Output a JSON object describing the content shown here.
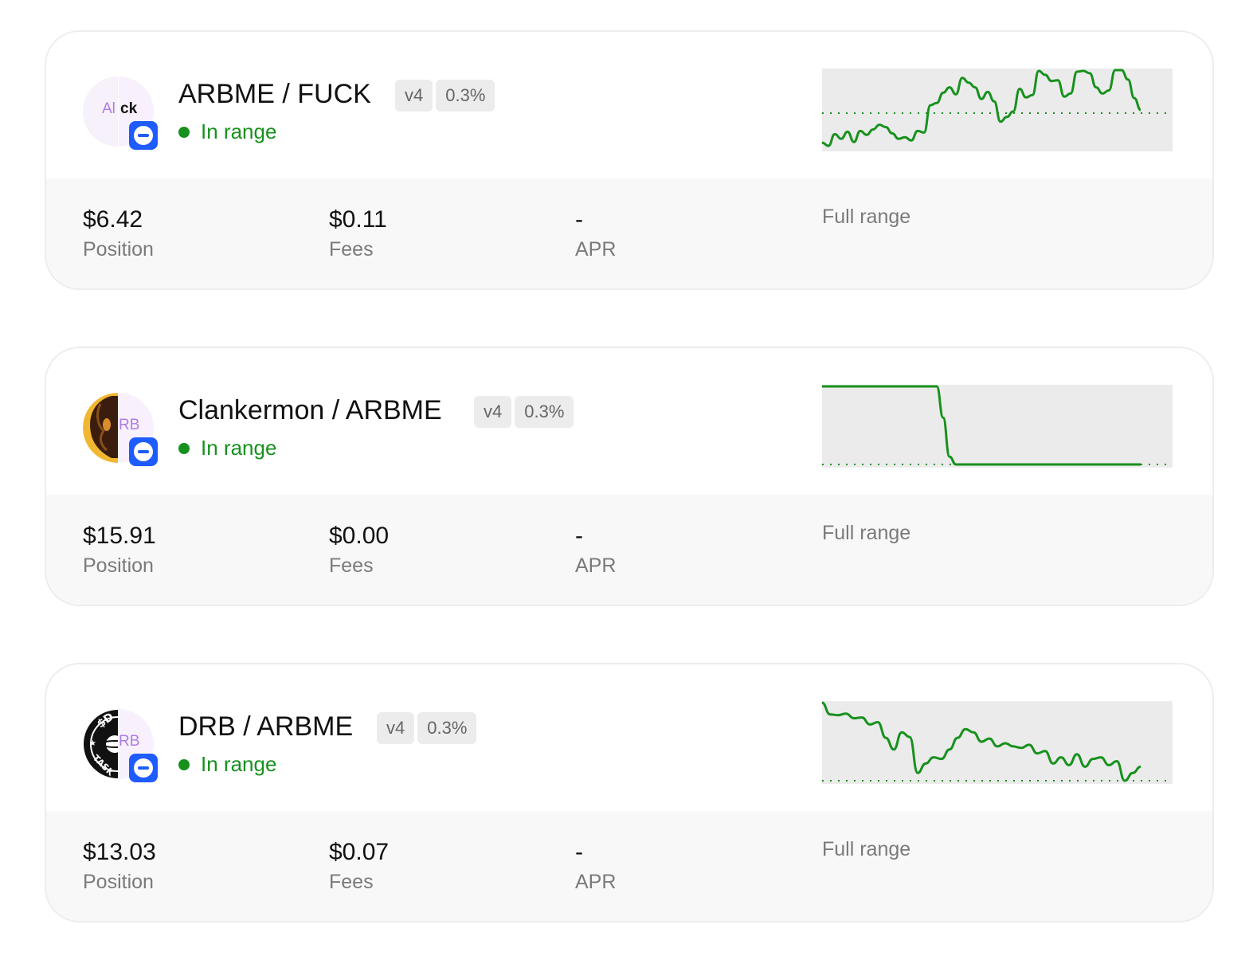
{
  "positions": [
    {
      "pair": "ARBME / FUCK",
      "version": "v4",
      "fee": "0.3%",
      "status": "In range",
      "token0_logo_text": "Al",
      "token1_logo_text": "ck",
      "token0_logo_icon": "alick-token-icon",
      "token1_logo_icon": "fuck-token-icon",
      "chain_icon": "base-chain-icon",
      "position_value": "$6.42",
      "position_label": "Position",
      "fees_value": "$0.11",
      "fees_label": "Fees",
      "apr_value": "-",
      "apr_label": "APR",
      "range_label": "Full range",
      "sparkline": [
        0.07,
        0.03,
        0.18,
        0.12,
        0.21,
        0.08,
        0.22,
        0.17,
        0.24,
        0.3,
        0.27,
        0.19,
        0.12,
        0.14,
        0.1,
        0.22,
        0.2,
        0.55,
        0.58,
        0.71,
        0.78,
        0.69,
        0.9,
        0.84,
        0.78,
        0.63,
        0.72,
        0.6,
        0.34,
        0.4,
        0.47,
        0.76,
        0.65,
        0.68,
        0.99,
        0.94,
        0.86,
        0.87,
        0.66,
        0.7,
        0.98,
        0.99,
        0.96,
        0.78,
        0.7,
        0.74,
        1.0,
        1.0,
        0.88,
        0.64,
        0.49
      ]
    },
    {
      "pair": "Clankermon / ARBME",
      "version": "v4",
      "fee": "0.3%",
      "status": "In range",
      "token0_logo_text": "",
      "token1_logo_text": "RB",
      "token0_logo_icon": "clankermon-token-icon",
      "token1_logo_icon": "arbme-token-icon",
      "chain_icon": "base-chain-icon",
      "position_value": "$15.91",
      "position_label": "Position",
      "fees_value": "$0.00",
      "fees_label": "Fees",
      "apr_value": "-",
      "apr_label": "APR",
      "range_label": "Full range",
      "sparkline": [
        1.0,
        1.0,
        1.0,
        1.0,
        1.0,
        1.0,
        1.0,
        1.0,
        1.0,
        1.0,
        1.0,
        1.0,
        1.0,
        1.0,
        1.0,
        1.0,
        1.0,
        1.0,
        1.0,
        0.6,
        0.1,
        0.0,
        0.0,
        0.0,
        0.0,
        0.0,
        0.0,
        0.0,
        0.0,
        0.0,
        0.0,
        0.0,
        0.0,
        0.0,
        0.0,
        0.0,
        0.0,
        0.0,
        0.0,
        0.0,
        0.0,
        0.0,
        0.0,
        0.0,
        0.0,
        0.0,
        0.0,
        0.0,
        0.0,
        0.0,
        0.0
      ]
    },
    {
      "pair": "DRB / ARBME",
      "version": "v4",
      "fee": "0.3%",
      "status": "In range",
      "token0_logo_text": "",
      "token1_logo_text": "RB",
      "token0_logo_icon": "drb-token-icon",
      "token1_logo_icon": "arbme-token-icon",
      "chain_icon": "base-chain-icon",
      "position_value": "$13.03",
      "position_label": "Position",
      "fees_value": "$0.07",
      "fees_label": "Fees",
      "apr_value": "-",
      "apr_label": "APR",
      "range_label": "Full range",
      "sparkline": [
        1.0,
        0.85,
        0.84,
        0.86,
        0.8,
        0.81,
        0.72,
        0.75,
        0.55,
        0.4,
        0.62,
        0.56,
        0.1,
        0.22,
        0.3,
        0.28,
        0.4,
        0.55,
        0.66,
        0.62,
        0.5,
        0.54,
        0.44,
        0.48,
        0.44,
        0.42,
        0.46,
        0.35,
        0.38,
        0.22,
        0.3,
        0.2,
        0.34,
        0.18,
        0.28,
        0.3,
        0.2,
        0.25,
        0.0,
        0.1,
        0.18
      ]
    }
  ]
}
